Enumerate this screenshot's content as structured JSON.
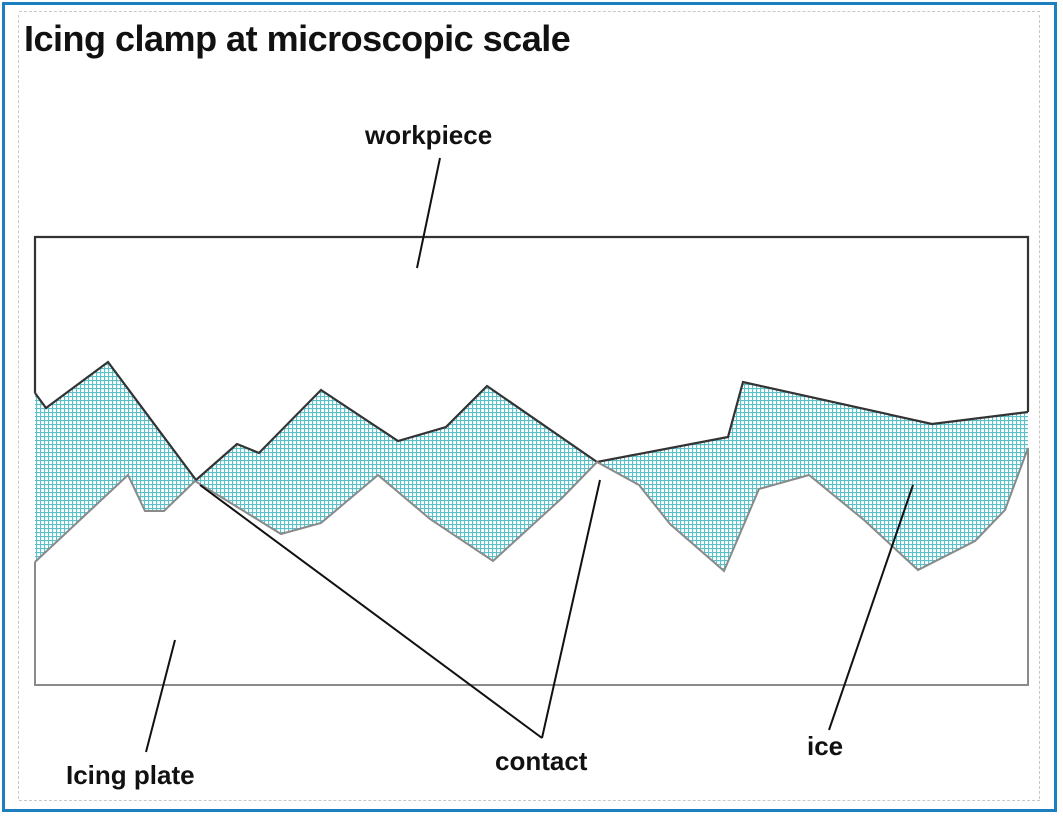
{
  "title": "Icing clamp at microscopic scale",
  "labels": {
    "workpiece": "workpiece",
    "icing_plate": "Icing plate",
    "contact": "contact",
    "ice": "ice"
  },
  "colors": {
    "border": "#1b7fc0",
    "ice": "#5cc0c8",
    "outline": "#333333"
  }
}
